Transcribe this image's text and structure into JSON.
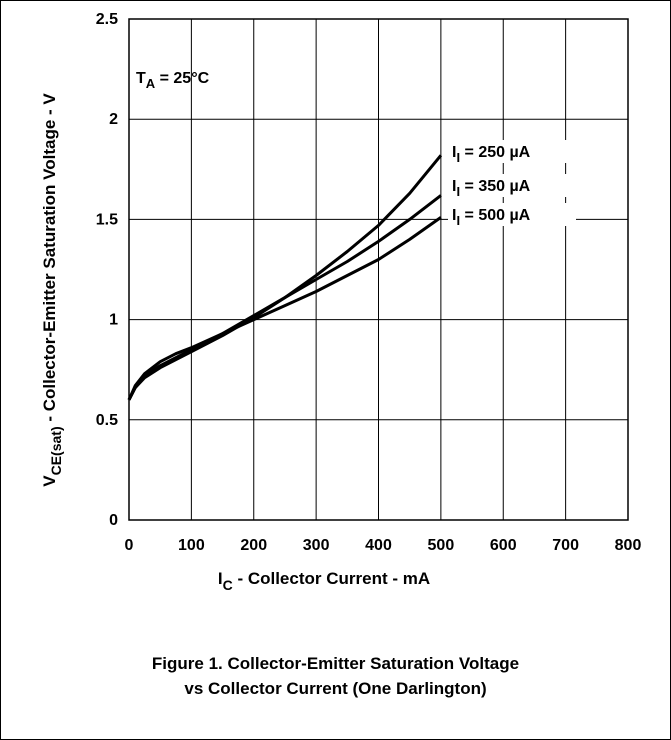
{
  "chart_data": {
    "type": "line",
    "xlim": [
      0,
      800
    ],
    "ylim": [
      0,
      2.5
    ],
    "x_ticks": [
      "0",
      "100",
      "200",
      "300",
      "400",
      "500",
      "600",
      "700",
      "800"
    ],
    "y_ticks": [
      "0",
      "0.5",
      "1",
      "1.5",
      "2",
      "2.5"
    ],
    "x_tick_values": [
      0,
      100,
      200,
      300,
      400,
      500,
      600,
      700,
      800
    ],
    "y_tick_values": [
      0,
      0.5,
      1,
      1.5,
      2,
      2.5
    ],
    "grid": true,
    "xlabel": {
      "main": "I",
      "sub": "C",
      "rest": " -  Collector Current -  mA"
    },
    "ylabel": {
      "main": "V",
      "sub": "CE(sat)",
      "rest": " -  Collector-Emitter Saturation Voltage -  V"
    },
    "annotation": {
      "main": "T",
      "sub": "A",
      "rest": " = 25°C"
    },
    "series": [
      {
        "name": "I_I = 250 µA",
        "label": {
          "main": "I",
          "sub": "I",
          "rest": " = 250 µA"
        },
        "x": [
          0,
          10,
          25,
          50,
          75,
          100,
          150,
          200,
          250,
          300,
          350,
          400,
          450,
          500
        ],
        "y": [
          0.6,
          0.66,
          0.71,
          0.76,
          0.8,
          0.84,
          0.92,
          1.01,
          1.11,
          1.22,
          1.34,
          1.47,
          1.63,
          1.82
        ]
      },
      {
        "name": "I_I = 350 µA",
        "label": {
          "main": "I",
          "sub": "I",
          "rest": " = 350 µA"
        },
        "x": [
          0,
          10,
          25,
          50,
          75,
          100,
          150,
          200,
          250,
          300,
          350,
          400,
          450,
          500
        ],
        "y": [
          0.6,
          0.66,
          0.72,
          0.77,
          0.81,
          0.85,
          0.93,
          1.02,
          1.11,
          1.2,
          1.29,
          1.39,
          1.5,
          1.62
        ]
      },
      {
        "name": "I_I = 500 µA",
        "label": {
          "main": "I",
          "sub": "I",
          "rest": " = 500 µA"
        },
        "x": [
          0,
          10,
          25,
          50,
          75,
          100,
          150,
          200,
          250,
          300,
          350,
          400,
          450,
          500
        ],
        "y": [
          0.6,
          0.67,
          0.73,
          0.79,
          0.83,
          0.86,
          0.93,
          1.0,
          1.07,
          1.14,
          1.22,
          1.3,
          1.4,
          1.51
        ]
      }
    ]
  },
  "caption": {
    "line1": "Figure 1. Collector-Emitter Saturation Voltage",
    "line2": "vs Collector Current (One Darlington)"
  }
}
